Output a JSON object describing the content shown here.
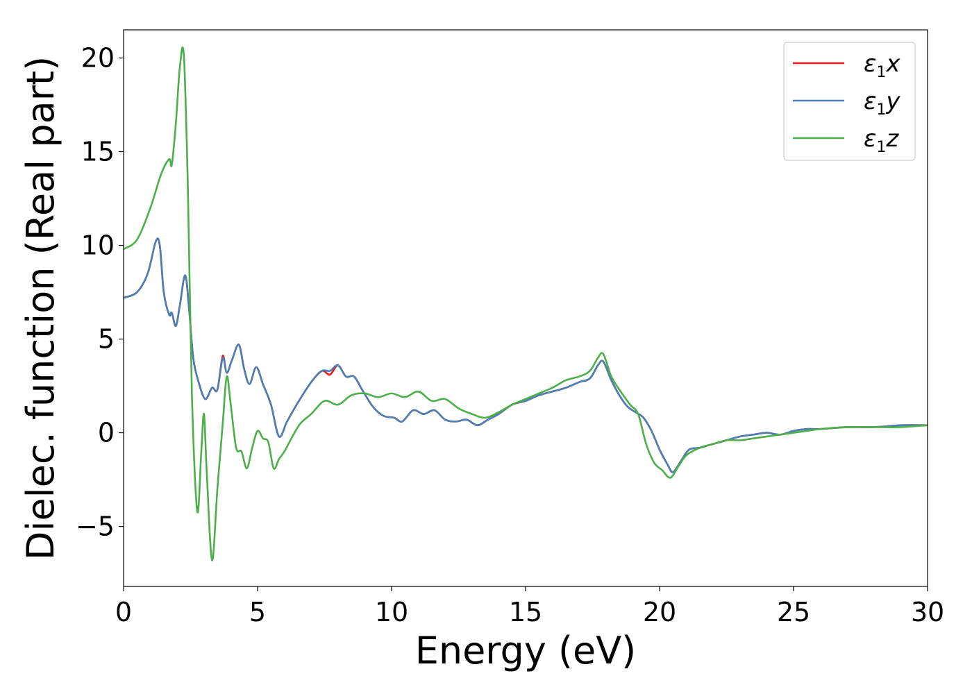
{
  "chart_data": {
    "type": "line",
    "title": "",
    "xlabel": "Energy (eV)",
    "ylabel": "Dielec. function (Real part)",
    "xlim": [
      0,
      30
    ],
    "ylim": [
      -8.2,
      21.5
    ],
    "xticks": [
      0,
      5,
      10,
      15,
      20,
      25,
      30
    ],
    "xtick_labels": [
      "0",
      "5",
      "10",
      "15",
      "20",
      "25",
      "30"
    ],
    "yticks": [
      -5,
      0,
      5,
      10,
      15,
      20
    ],
    "ytick_labels": [
      "−5",
      "0",
      "5",
      "10",
      "15",
      "20"
    ],
    "grid": false,
    "legend_position": "top-right",
    "series": [
      {
        "name": "ε₁x",
        "legend": {
          "base": "ε",
          "sub": "1",
          "var": "x"
        },
        "color": "#e41a1c",
        "x": [
          0,
          0.5,
          0.9,
          1.2,
          1.35,
          1.5,
          1.7,
          1.8,
          1.95,
          2.1,
          2.3,
          2.45,
          2.6,
          2.8,
          3.05,
          3.3,
          3.5,
          3.7,
          3.85,
          4.05,
          4.3,
          4.5,
          4.7,
          4.95,
          5.2,
          5.5,
          5.8,
          6.1,
          6.5,
          7.0,
          7.4,
          7.7,
          8.0,
          8.3,
          8.6,
          8.9,
          9.3,
          9.7,
          10.1,
          10.4,
          10.8,
          11.2,
          11.6,
          12.0,
          12.4,
          12.8,
          13.2,
          13.6,
          14.0,
          14.5,
          15.0,
          15.5,
          16.0,
          16.5,
          17.0,
          17.4,
          17.7,
          17.9,
          18.2,
          18.5,
          18.8,
          19.1,
          19.4,
          19.7,
          20.0,
          20.3,
          20.5,
          20.8,
          21.1,
          21.5,
          22.0,
          22.5,
          23.0,
          23.5,
          24.0,
          24.5,
          25.0,
          25.5,
          26.0,
          27.0,
          28.0,
          29.0,
          30.0
        ],
        "values": [
          7.2,
          7.5,
          8.5,
          10.2,
          10.0,
          7.5,
          6.3,
          6.4,
          5.7,
          6.8,
          8.4,
          6.5,
          4.0,
          2.7,
          1.8,
          2.4,
          2.3,
          4.1,
          3.2,
          3.9,
          4.7,
          3.4,
          2.6,
          3.5,
          2.6,
          1.5,
          -0.2,
          0.6,
          1.6,
          2.7,
          3.3,
          3.1,
          3.6,
          3.0,
          3.0,
          2.3,
          1.4,
          0.9,
          0.8,
          0.6,
          1.2,
          1.0,
          1.2,
          0.7,
          0.6,
          0.7,
          0.4,
          0.7,
          1.0,
          1.5,
          1.7,
          2.0,
          2.2,
          2.4,
          2.7,
          2.9,
          3.6,
          3.8,
          2.8,
          2.0,
          1.4,
          1.1,
          0.8,
          0.1,
          -0.9,
          -1.7,
          -2.1,
          -1.5,
          -0.9,
          -0.8,
          -0.6,
          -0.4,
          -0.2,
          -0.1,
          0.0,
          -0.1,
          0.1,
          0.2,
          0.2,
          0.3,
          0.3,
          0.4,
          0.4
        ]
      },
      {
        "name": "ε₁y",
        "legend": {
          "base": "ε",
          "sub": "1",
          "var": "y"
        },
        "color": "#4a7fb5",
        "x": [
          0,
          0.5,
          0.9,
          1.2,
          1.35,
          1.5,
          1.7,
          1.8,
          1.95,
          2.1,
          2.3,
          2.45,
          2.6,
          2.8,
          3.05,
          3.3,
          3.5,
          3.7,
          3.85,
          4.05,
          4.3,
          4.5,
          4.7,
          4.95,
          5.2,
          5.5,
          5.8,
          6.1,
          6.5,
          7.0,
          7.4,
          7.7,
          8.0,
          8.3,
          8.6,
          8.9,
          9.3,
          9.7,
          10.1,
          10.4,
          10.8,
          11.2,
          11.6,
          12.0,
          12.4,
          12.8,
          13.2,
          13.6,
          14.0,
          14.5,
          15.0,
          15.5,
          16.0,
          16.5,
          17.0,
          17.4,
          17.7,
          17.9,
          18.2,
          18.5,
          18.8,
          19.1,
          19.4,
          19.7,
          20.0,
          20.3,
          20.5,
          20.8,
          21.1,
          21.5,
          22.0,
          22.5,
          23.0,
          23.5,
          24.0,
          24.5,
          25.0,
          25.5,
          26.0,
          27.0,
          28.0,
          29.0,
          30.0
        ],
        "values": [
          7.2,
          7.5,
          8.5,
          10.2,
          10.0,
          7.5,
          6.3,
          6.4,
          5.7,
          6.8,
          8.4,
          6.5,
          4.0,
          2.7,
          1.8,
          2.4,
          2.3,
          4.0,
          3.2,
          3.9,
          4.7,
          3.4,
          2.6,
          3.5,
          2.6,
          1.5,
          -0.2,
          0.6,
          1.6,
          2.7,
          3.3,
          3.3,
          3.6,
          3.0,
          3.0,
          2.3,
          1.4,
          0.9,
          0.8,
          0.6,
          1.2,
          1.0,
          1.2,
          0.7,
          0.6,
          0.7,
          0.4,
          0.7,
          1.0,
          1.5,
          1.7,
          2.0,
          2.2,
          2.4,
          2.7,
          2.9,
          3.6,
          3.8,
          2.8,
          2.0,
          1.4,
          1.1,
          0.8,
          0.1,
          -0.9,
          -1.7,
          -2.1,
          -1.5,
          -0.9,
          -0.8,
          -0.6,
          -0.4,
          -0.2,
          -0.1,
          0.0,
          -0.1,
          0.1,
          0.2,
          0.2,
          0.3,
          0.3,
          0.4,
          0.4
        ]
      },
      {
        "name": "ε₁z",
        "legend": {
          "base": "ε",
          "sub": "1",
          "var": "z"
        },
        "color": "#4daf4a",
        "x": [
          0,
          0.5,
          1.0,
          1.4,
          1.7,
          1.8,
          1.95,
          2.1,
          2.25,
          2.4,
          2.55,
          2.75,
          2.9,
          3.0,
          3.1,
          3.3,
          3.5,
          3.7,
          3.85,
          4.0,
          4.2,
          4.4,
          4.6,
          4.8,
          5.0,
          5.2,
          5.4,
          5.6,
          5.8,
          6.0,
          6.3,
          6.6,
          7.0,
          7.5,
          8.0,
          8.5,
          9.0,
          9.5,
          10.0,
          10.5,
          11.0,
          11.5,
          12.0,
          12.5,
          13.0,
          13.5,
          14.0,
          14.5,
          15.0,
          15.5,
          16.0,
          16.5,
          17.0,
          17.4,
          17.7,
          17.9,
          18.2,
          18.5,
          18.9,
          19.2,
          19.5,
          19.8,
          20.1,
          20.4,
          20.7,
          21.0,
          21.5,
          22.0,
          22.5,
          23.0,
          23.5,
          24.0,
          24.5,
          25.0,
          25.5,
          26.0,
          27.0,
          28.0,
          29.0,
          30.0
        ],
        "values": [
          9.8,
          10.3,
          12.0,
          13.8,
          14.6,
          14.3,
          16.5,
          19.5,
          20.1,
          13.0,
          2.0,
          -4.2,
          -1.0,
          1.0,
          -2.0,
          -6.8,
          -3.0,
          0.5,
          3.0,
          1.5,
          -0.8,
          -1.0,
          -1.9,
          -0.8,
          0.1,
          -0.3,
          -0.5,
          -1.9,
          -1.4,
          -1.0,
          -0.2,
          0.5,
          1.0,
          1.7,
          1.5,
          2.0,
          2.1,
          1.9,
          2.1,
          1.9,
          2.2,
          1.7,
          1.8,
          1.3,
          1.0,
          0.8,
          1.1,
          1.5,
          1.8,
          2.1,
          2.4,
          2.8,
          3.0,
          3.3,
          4.0,
          4.2,
          3.0,
          2.3,
          1.5,
          1.0,
          -0.6,
          -1.6,
          -2.0,
          -2.4,
          -1.8,
          -1.2,
          -0.8,
          -0.6,
          -0.4,
          -0.4,
          -0.3,
          -0.2,
          -0.1,
          0.0,
          0.1,
          0.2,
          0.3,
          0.3,
          0.3,
          0.4
        ]
      }
    ]
  }
}
